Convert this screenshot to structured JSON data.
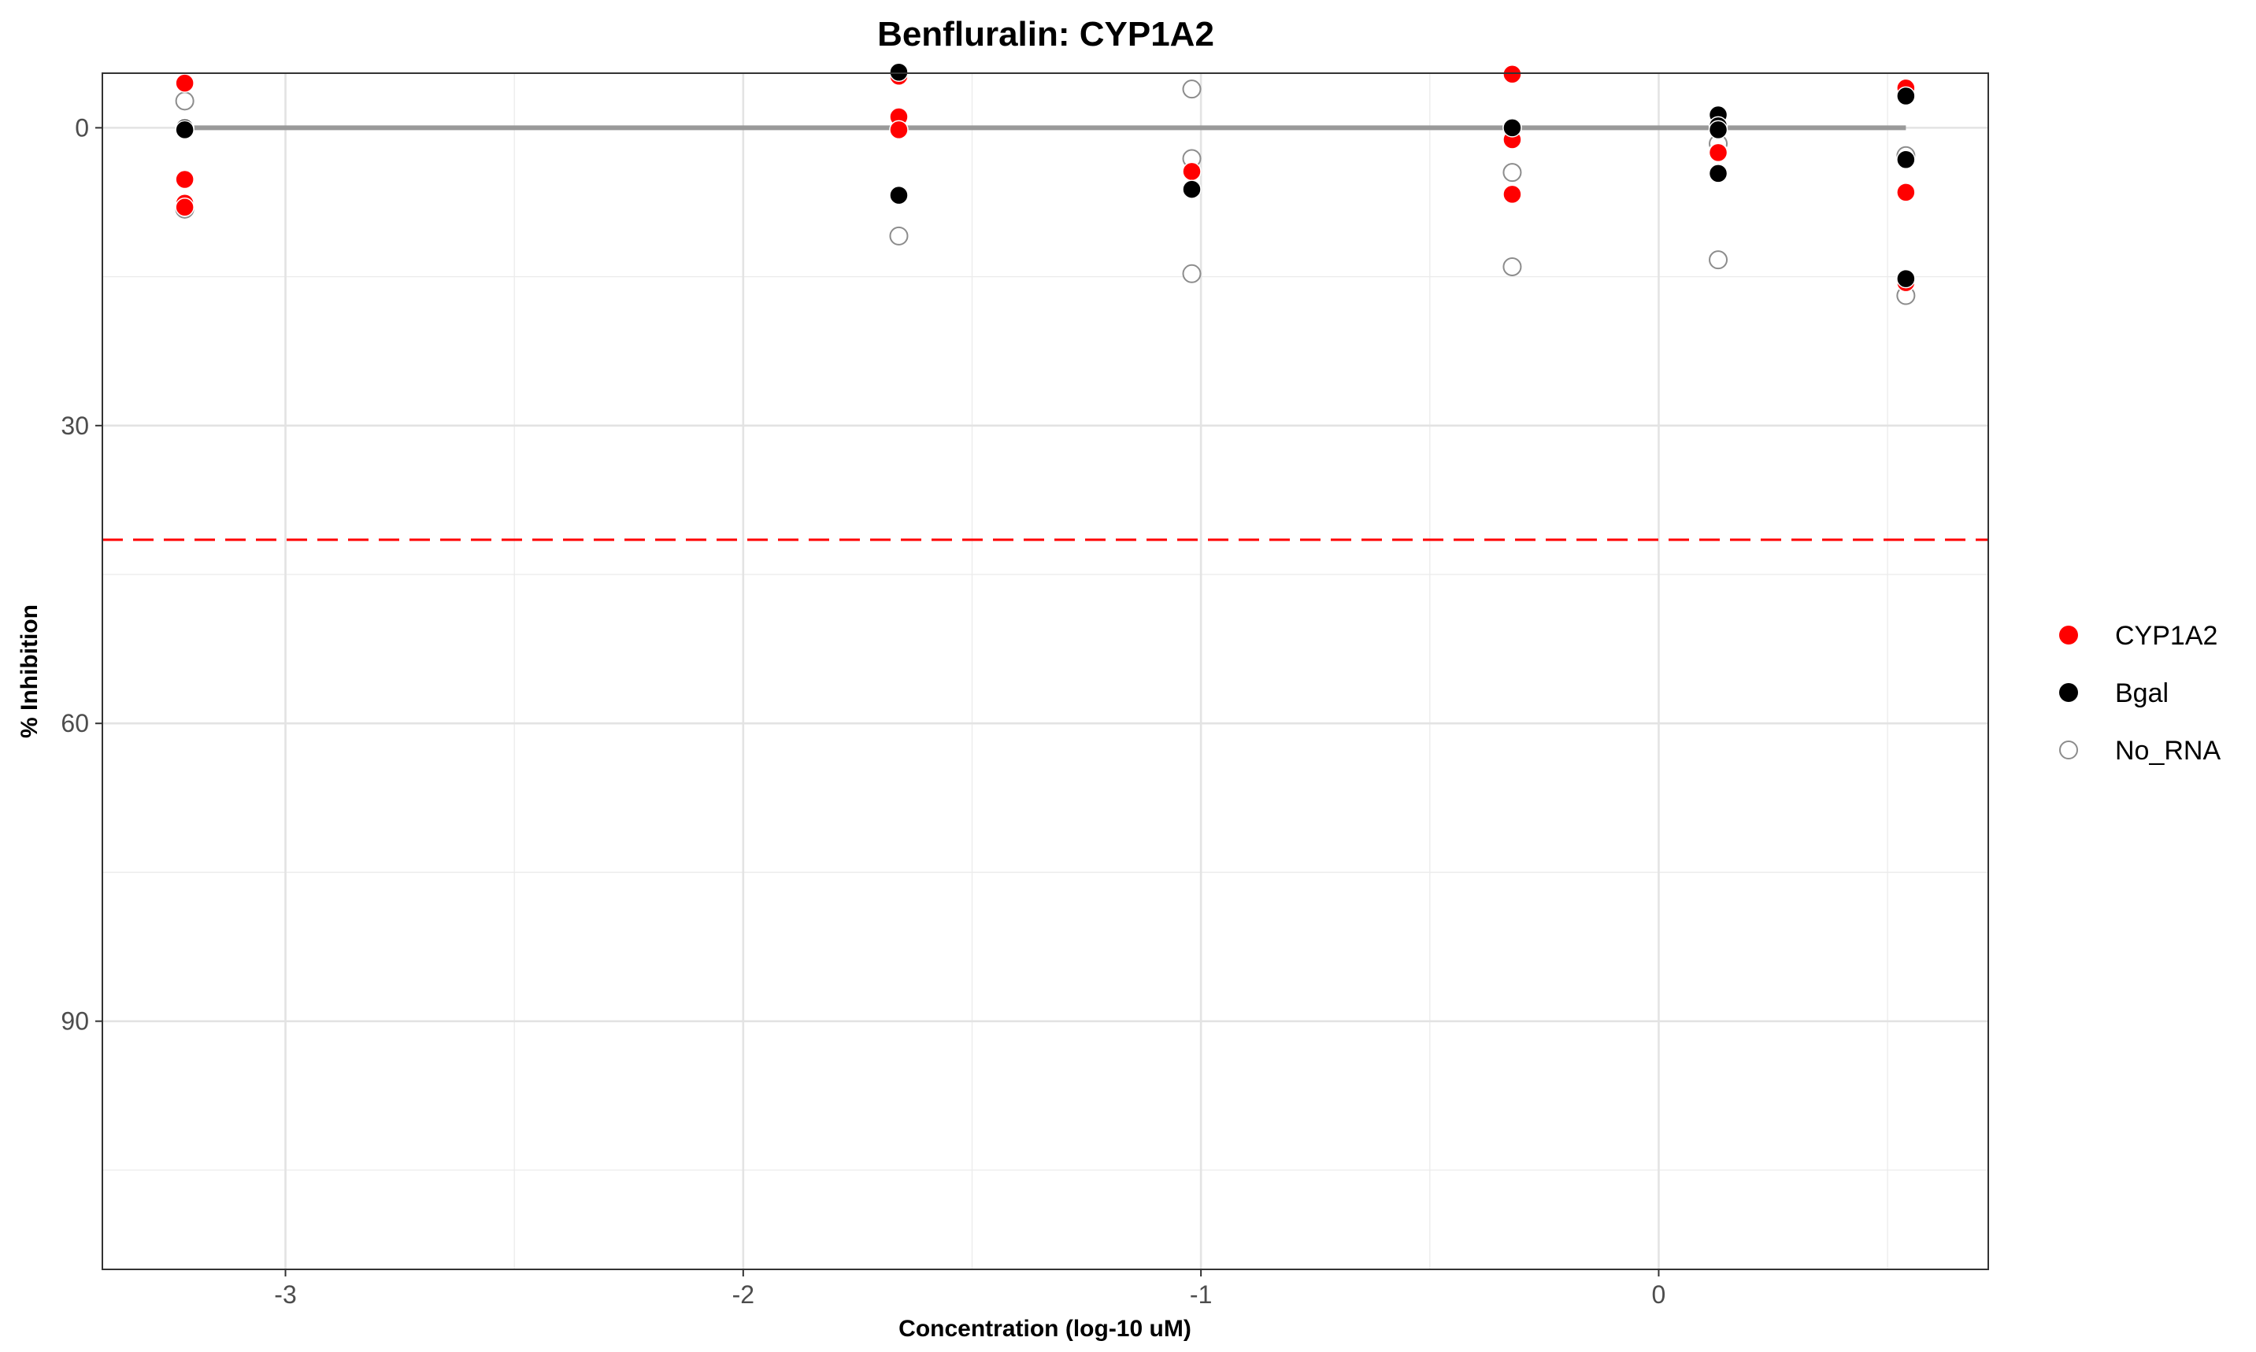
{
  "chart_data": {
    "type": "scatter",
    "title": "Benfluralin: CYP1A2",
    "xlabel": "Concentration (log-10 uM)",
    "ylabel": "% Inhibition",
    "xlim": [
      -3.4,
      0.72
    ],
    "ylim": [
      115,
      -5.5
    ],
    "y_reversed": true,
    "x_ticks": [
      -3,
      -2,
      -1,
      0
    ],
    "x_tick_labels": [
      "-3",
      "-2",
      "-1",
      "0"
    ],
    "y_ticks": [
      0,
      30,
      60,
      90
    ],
    "y_tick_labels": [
      "0",
      "30",
      "60",
      "90"
    ],
    "grid": true,
    "legend_position": "right",
    "series": [
      {
        "name": "CYP1A2",
        "color": "#ff0000",
        "marker": "filled-circle",
        "points": [
          {
            "x": -3.22,
            "y": -4.5
          },
          {
            "x": -3.22,
            "y": 5.2
          },
          {
            "x": -3.22,
            "y": 7.6
          },
          {
            "x": -3.22,
            "y": 8.0
          },
          {
            "x": -1.66,
            "y": -5.2
          },
          {
            "x": -1.66,
            "y": -1.1
          },
          {
            "x": -1.66,
            "y": 0.2
          },
          {
            "x": -1.02,
            "y": 4.4
          },
          {
            "x": -0.32,
            "y": -5.4
          },
          {
            "x": -0.32,
            "y": 1.2
          },
          {
            "x": -0.32,
            "y": 6.7
          },
          {
            "x": 0.13,
            "y": 2.4
          },
          {
            "x": 0.13,
            "y": 2.5
          },
          {
            "x": 0.54,
            "y": -4.0
          },
          {
            "x": 0.54,
            "y": 6.5
          },
          {
            "x": 0.54,
            "y": 15.6
          }
        ]
      },
      {
        "name": "Bgal",
        "color": "#000000",
        "marker": "filled-circle",
        "points": [
          {
            "x": -3.22,
            "y": 0.0
          },
          {
            "x": -3.22,
            "y": 0.2
          },
          {
            "x": -1.66,
            "y": -5.6
          },
          {
            "x": -1.66,
            "y": 6.8
          },
          {
            "x": -1.02,
            "y": 6.2
          },
          {
            "x": -0.32,
            "y": -0.1
          },
          {
            "x": -0.32,
            "y": 0.0
          },
          {
            "x": 0.13,
            "y": -1.3
          },
          {
            "x": 0.13,
            "y": -0.2
          },
          {
            "x": 0.13,
            "y": 0.2
          },
          {
            "x": 0.13,
            "y": 4.6
          },
          {
            "x": 0.54,
            "y": -3.2
          },
          {
            "x": 0.54,
            "y": 3.2
          },
          {
            "x": 0.54,
            "y": 15.2
          }
        ]
      },
      {
        "name": "No_RNA",
        "color": "#8c8c8c",
        "marker": "open-circle",
        "points": [
          {
            "x": -3.22,
            "y": -2.7
          },
          {
            "x": -3.22,
            "y": 8.2
          },
          {
            "x": -1.66,
            "y": 0.2
          },
          {
            "x": -1.66,
            "y": 10.9
          },
          {
            "x": -1.02,
            "y": -3.9
          },
          {
            "x": -1.02,
            "y": 3.1
          },
          {
            "x": -1.02,
            "y": 14.7
          },
          {
            "x": -0.32,
            "y": 4.5
          },
          {
            "x": -0.32,
            "y": 14.0
          },
          {
            "x": 0.13,
            "y": 1.6
          },
          {
            "x": 0.13,
            "y": 13.3
          },
          {
            "x": 0.54,
            "y": 2.8
          },
          {
            "x": 0.54,
            "y": 16.9
          }
        ]
      }
    ],
    "reference_lines": [
      {
        "orientation": "horizontal",
        "y": 41.5,
        "color": "#ff0000",
        "style": "dashed"
      }
    ],
    "fit_line": {
      "x": [
        -3.22,
        0.54
      ],
      "y": [
        0,
        0
      ],
      "color": "#999999"
    }
  }
}
